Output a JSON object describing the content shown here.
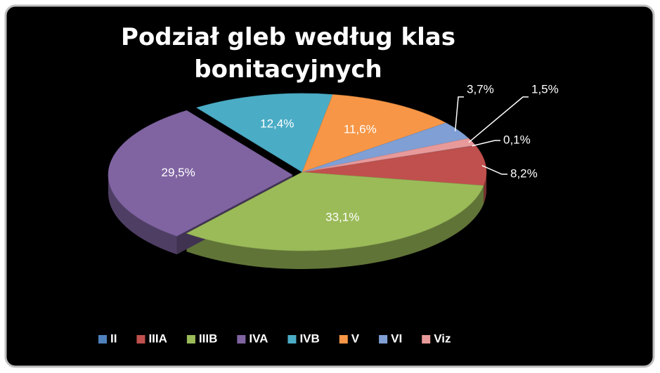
{
  "chart_data": {
    "type": "pie3d",
    "title": "Podział gleb według klas bonitacyjnych",
    "categories": [
      "II",
      "IIIA",
      "IIIB",
      "IVA",
      "IVB",
      "V",
      "VI",
      "Viz"
    ],
    "values": [
      0.1,
      8.2,
      33.1,
      29.5,
      12.4,
      11.6,
      3.7,
      1.5
    ],
    "value_labels": [
      "0,1%",
      "8,2%",
      "33,1%",
      "29,5%",
      "12,4%",
      "11,6%",
      "3,7%",
      "1,5%"
    ],
    "colors": [
      "#4f81bd",
      "#c0504d",
      "#9bbb59",
      "#8064a2",
      "#4bacc6",
      "#f79646",
      "#7f9fd5",
      "#e89a9a"
    ],
    "legend": "bottom"
  }
}
